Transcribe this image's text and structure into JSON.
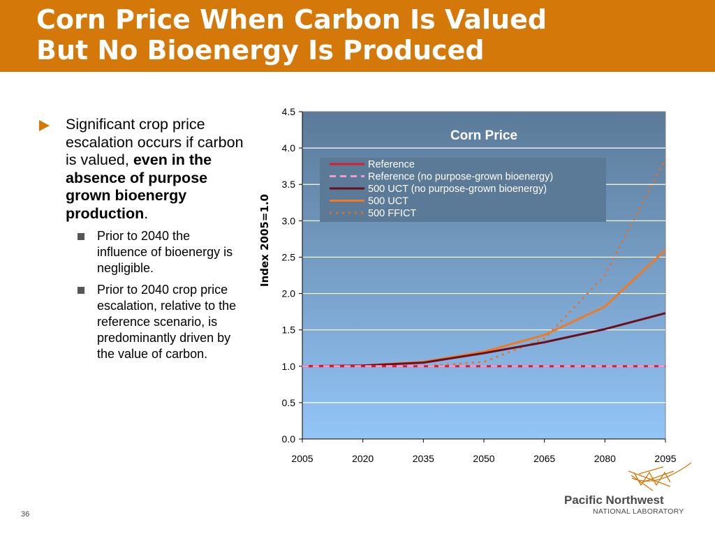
{
  "title": {
    "line1": "Corn Price When Carbon Is Valued",
    "line2": "But No Bioenergy Is Produced"
  },
  "bullets": {
    "main": {
      "plain": "Significant crop price escalation occurs if carbon is valued,",
      "bold": "even in the absence of purpose grown bioenergy production",
      "end": "."
    },
    "sub": [
      "Prior to 2040 the influence of bioenergy is negligible.",
      "Prior to 2040 crop price escalation, relative to the reference scenario, is predominantly driven by the value of carbon."
    ]
  },
  "page_number": "36",
  "logo": {
    "name": "Pacific Northwest",
    "sub": "NATIONAL LABORATORY"
  },
  "colors": {
    "accent": "#d4780a",
    "plot_top": "#5b7a98",
    "plot_bottom": "#93c5f7"
  },
  "chart_data": {
    "type": "line",
    "title": "Corn Price",
    "xlabel": "",
    "ylabel": "Index 2005=1.0",
    "x": [
      2005,
      2020,
      2035,
      2050,
      2065,
      2080,
      2095
    ],
    "xlim": [
      2005,
      2095
    ],
    "ylim": [
      0,
      4.5
    ],
    "yticks": [
      "0.0",
      "0.5",
      "1.0",
      "1.5",
      "2.0",
      "2.5",
      "3.0",
      "3.5",
      "4.0",
      "4.5"
    ],
    "xticks": [
      "2005",
      "2020",
      "2035",
      "2050",
      "2065",
      "2080",
      "2095"
    ],
    "grid": true,
    "legend_position": "top-left",
    "series": [
      {
        "name": "Reference",
        "color": "#d81e2c",
        "dash": "solid",
        "values": [
          1.0,
          1.0,
          1.0,
          1.0,
          1.0,
          1.0,
          1.0
        ]
      },
      {
        "name": "Reference (no purpose-grown bioenergy)",
        "color": "#f59ad0",
        "dash": "dashed",
        "values": [
          1.0,
          1.0,
          1.0,
          1.0,
          1.0,
          1.0,
          1.0
        ]
      },
      {
        "name": "500 UCT (no purpose-grown bioenergy)",
        "color": "#6b0e1e",
        "dash": "solid",
        "values": [
          1.0,
          1.01,
          1.05,
          1.18,
          1.33,
          1.51,
          1.73
        ]
      },
      {
        "name": "500 UCT",
        "color": "#f07a24",
        "dash": "solid",
        "values": [
          1.0,
          1.01,
          1.06,
          1.2,
          1.43,
          1.82,
          2.6
        ]
      },
      {
        "name": "500 FFICT",
        "color": "#e8711c",
        "dash": "dotted",
        "values": [
          1.0,
          1.0,
          1.0,
          1.06,
          1.38,
          2.25,
          3.85
        ]
      }
    ]
  }
}
